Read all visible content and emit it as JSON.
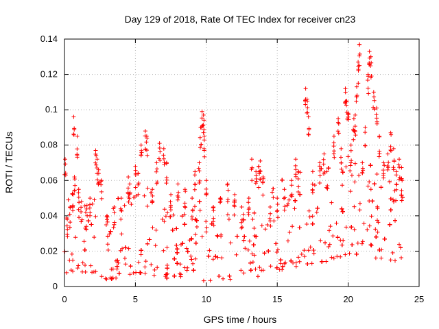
{
  "chart_data": {
    "type": "scatter",
    "title": "Day 129 of 2018, Rate Of TEC Index for receiver cn23",
    "xlabel": "GPS time / hours",
    "ylabel": "ROTI / TECUs",
    "xlim": [
      0,
      25
    ],
    "ylim": [
      0,
      0.14
    ],
    "xticks": [
      0,
      5,
      10,
      15,
      20,
      25
    ],
    "xtick_labels": [
      "0",
      "5",
      "10",
      "15",
      "20",
      "25"
    ],
    "yticks": [
      0,
      0.02,
      0.04,
      0.06,
      0.08,
      0.1,
      0.12,
      0.14
    ],
    "ytick_labels": [
      "0",
      "0.02",
      "0.04",
      "0.06",
      "0.08",
      "0.1",
      "0.12",
      "0.14"
    ],
    "grid": true,
    "marker": "+",
    "color": "#ff0000",
    "series": [
      {
        "name": "ROTI",
        "points": [
          [
            0.05,
            0.072
          ],
          [
            0.2,
            0.038
          ],
          [
            0.4,
            0.045
          ],
          [
            0.6,
            0.052
          ],
          [
            0.7,
            0.062
          ],
          [
            0.65,
            0.096
          ],
          [
            0.9,
            0.085
          ],
          [
            1.0,
            0.055
          ],
          [
            1.2,
            0.048
          ],
          [
            1.5,
            0.042
          ],
          [
            1.8,
            0.05
          ],
          [
            2.2,
            0.077
          ],
          [
            2.3,
            0.072
          ],
          [
            2.4,
            0.066
          ],
          [
            2.6,
            0.06
          ],
          [
            3.0,
            0.04
          ],
          [
            3.5,
            0.045
          ],
          [
            4.0,
            0.05
          ],
          [
            4.5,
            0.062
          ],
          [
            4.6,
            0.058
          ],
          [
            5.0,
            0.068
          ],
          [
            5.2,
            0.064
          ],
          [
            5.4,
            0.08
          ],
          [
            5.7,
            0.088
          ],
          [
            5.8,
            0.085
          ],
          [
            6.2,
            0.055
          ],
          [
            6.5,
            0.07
          ],
          [
            6.7,
            0.081
          ],
          [
            7.0,
            0.078
          ],
          [
            7.2,
            0.07
          ],
          [
            7.5,
            0.052
          ],
          [
            8.0,
            0.058
          ],
          [
            8.5,
            0.055
          ],
          [
            9.0,
            0.05
          ],
          [
            9.2,
            0.065
          ],
          [
            9.5,
            0.07
          ],
          [
            9.6,
            0.09
          ],
          [
            9.7,
            0.099
          ],
          [
            9.8,
            0.097
          ],
          [
            9.85,
            0.085
          ],
          [
            10.0,
            0.06
          ],
          [
            10.5,
            0.045
          ],
          [
            11.0,
            0.05
          ],
          [
            11.5,
            0.058
          ],
          [
            12.0,
            0.052
          ],
          [
            12.5,
            0.045
          ],
          [
            13.0,
            0.05
          ],
          [
            13.2,
            0.072
          ],
          [
            13.5,
            0.065
          ],
          [
            13.7,
            0.068
          ],
          [
            13.8,
            0.071
          ],
          [
            14.0,
            0.062
          ],
          [
            14.5,
            0.045
          ],
          [
            15.0,
            0.05
          ],
          [
            15.5,
            0.055
          ],
          [
            16.0,
            0.06
          ],
          [
            16.3,
            0.072
          ],
          [
            16.5,
            0.065
          ],
          [
            17.0,
            0.112
          ],
          [
            17.1,
            0.106
          ],
          [
            17.2,
            0.096
          ],
          [
            17.5,
            0.065
          ],
          [
            18.0,
            0.07
          ],
          [
            18.3,
            0.075
          ],
          [
            18.5,
            0.065
          ],
          [
            19.0,
            0.085
          ],
          [
            19.3,
            0.095
          ],
          [
            19.5,
            0.078
          ],
          [
            19.8,
            0.112
          ],
          [
            19.9,
            0.105
          ],
          [
            20.0,
            0.098
          ],
          [
            20.2,
            0.08
          ],
          [
            20.4,
            0.095
          ],
          [
            20.5,
            0.097
          ],
          [
            20.6,
            0.113
          ],
          [
            20.7,
            0.127
          ],
          [
            20.8,
            0.137
          ],
          [
            21.0,
            0.07
          ],
          [
            21.2,
            0.09
          ],
          [
            21.4,
            0.12
          ],
          [
            21.5,
            0.133
          ],
          [
            21.6,
            0.13
          ],
          [
            21.8,
            0.11
          ],
          [
            22.0,
            0.101
          ],
          [
            22.2,
            0.085
          ],
          [
            22.5,
            0.07
          ],
          [
            22.8,
            0.075
          ],
          [
            23.0,
            0.087
          ],
          [
            23.2,
            0.078
          ],
          [
            23.4,
            0.065
          ],
          [
            23.6,
            0.072
          ],
          [
            23.8,
            0.06
          ]
        ],
        "dense_band": {
          "x_range": [
            0,
            23.9
          ],
          "baseline_profile": [
            [
              0,
              0.018
            ],
            [
              1,
              0.02
            ],
            [
              2,
              0.019
            ],
            [
              3,
              0.016
            ],
            [
              4,
              0.017
            ],
            [
              5,
              0.02
            ],
            [
              6,
              0.019
            ],
            [
              7,
              0.017
            ],
            [
              8,
              0.016
            ],
            [
              9,
              0.016
            ],
            [
              10,
              0.015
            ],
            [
              11,
              0.016
            ],
            [
              12,
              0.016
            ],
            [
              13,
              0.017
            ],
            [
              14,
              0.018
            ],
            [
              15,
              0.02
            ],
            [
              16,
              0.023
            ],
            [
              17,
              0.024
            ],
            [
              18,
              0.025
            ],
            [
              19,
              0.027
            ],
            [
              20,
              0.03
            ],
            [
              21,
              0.03
            ],
            [
              22,
              0.028
            ],
            [
              23,
              0.027
            ],
            [
              23.9,
              0.025
            ]
          ],
          "spread_profile": [
            [
              0,
              0.022
            ],
            [
              2,
              0.024
            ],
            [
              4,
              0.02
            ],
            [
              6,
              0.024
            ],
            [
              8,
              0.02
            ],
            [
              10,
              0.02
            ],
            [
              12,
              0.02
            ],
            [
              14,
              0.022
            ],
            [
              16,
              0.026
            ],
            [
              18,
              0.028
            ],
            [
              20,
              0.034
            ],
            [
              22,
              0.032
            ],
            [
              23.9,
              0.028
            ]
          ],
          "min_value": 0.003
        }
      }
    ]
  }
}
